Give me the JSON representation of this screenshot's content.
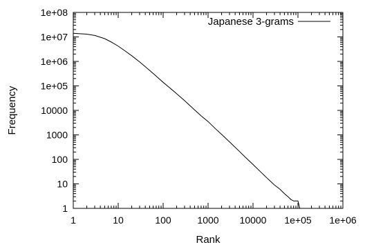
{
  "chart_data": {
    "type": "line",
    "title": "",
    "xlabel": "Rank",
    "ylabel": "Frequency",
    "xscale": "log",
    "yscale": "log",
    "xlim": [
      1,
      1000000
    ],
    "ylim": [
      1,
      100000000
    ],
    "grid": false,
    "legend_position": "top-right",
    "x_tick_labels": [
      "1",
      "10",
      "100",
      "1000",
      "10000",
      "1e+05",
      "1e+06"
    ],
    "y_tick_labels": [
      "1",
      "10",
      "100",
      "1000",
      "10000",
      "1e+05",
      "1e+06",
      "1e+07",
      "1e+08"
    ],
    "series": [
      {
        "name": "Japanese 3-grams",
        "color": "#000000",
        "points": [
          [
            1,
            14000000
          ],
          [
            2,
            13000000
          ],
          [
            3,
            11500000
          ],
          [
            5,
            8500000
          ],
          [
            7,
            6200000
          ],
          [
            10,
            4200000
          ],
          [
            15,
            2500000
          ],
          [
            20,
            1700000
          ],
          [
            30,
            950000
          ],
          [
            50,
            430000
          ],
          [
            70,
            250000
          ],
          [
            100,
            140000
          ],
          [
            150,
            75000
          ],
          [
            200,
            48000
          ],
          [
            300,
            25000
          ],
          [
            500,
            10500
          ],
          [
            700,
            6000
          ],
          [
            1000,
            3500
          ],
          [
            1500,
            1700
          ],
          [
            2000,
            1050
          ],
          [
            3000,
            520
          ],
          [
            5000,
            210
          ],
          [
            7000,
            115
          ],
          [
            10000,
            62
          ],
          [
            15000,
            30
          ],
          [
            20000,
            18
          ],
          [
            30000,
            9
          ],
          [
            40000,
            6
          ],
          [
            50000,
            4
          ],
          [
            60000,
            3
          ],
          [
            70000,
            2.3
          ],
          [
            80000,
            2
          ],
          [
            100000,
            2
          ],
          [
            110000,
            1
          ]
        ]
      }
    ]
  }
}
